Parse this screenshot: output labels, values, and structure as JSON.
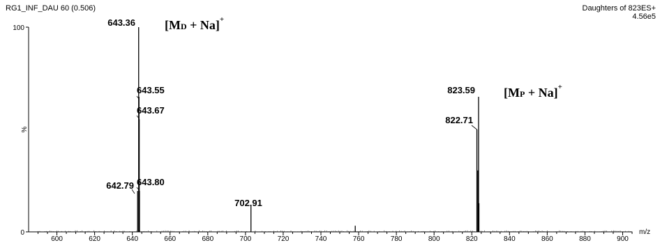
{
  "header": {
    "left_text": "RG1_INF_DAU 60 (0.506)",
    "right_line1": "Daughters of 823ES+",
    "right_line2": "4.56e5"
  },
  "annotations": {
    "md": {
      "open": "[M",
      "sub": "D",
      "rest": " + Na]",
      "sup": "+"
    },
    "mp": {
      "open": "[M",
      "sub": "P",
      "rest": " + Na]",
      "sup": "+"
    }
  },
  "chart_data": {
    "type": "bar",
    "title": "",
    "xlabel": "m/z",
    "ylabel": "%",
    "xlim": [
      585,
      905
    ],
    "ylim": [
      0,
      100
    ],
    "x_ticks": [
      600,
      620,
      640,
      660,
      680,
      700,
      720,
      740,
      760,
      780,
      800,
      820,
      840,
      860,
      880,
      900
    ],
    "y_ticks": [
      {
        "value": 0,
        "label": "0"
      },
      {
        "value": 100,
        "label": "100"
      }
    ],
    "y_mid_label": "%",
    "peaks": [
      {
        "x": 642.79,
        "y": 20,
        "label": "642.79"
      },
      {
        "x": 643.36,
        "y": 100,
        "label": "643.36"
      },
      {
        "x": 643.55,
        "y": 66,
        "label": "643.55"
      },
      {
        "x": 643.67,
        "y": 55,
        "label": "643.67"
      },
      {
        "x": 643.8,
        "y": 20,
        "label": "643.80"
      },
      {
        "x": 702.91,
        "y": 13,
        "label": "702.91"
      },
      {
        "x": 758.2,
        "y": 3,
        "label": ""
      },
      {
        "x": 822.71,
        "y": 50,
        "label": "822.71"
      },
      {
        "x": 823.2,
        "y": 30,
        "label": ""
      },
      {
        "x": 823.59,
        "y": 66,
        "label": "823.59"
      },
      {
        "x": 823.8,
        "y": 14,
        "label": ""
      }
    ],
    "grid": false,
    "legend": "none"
  }
}
